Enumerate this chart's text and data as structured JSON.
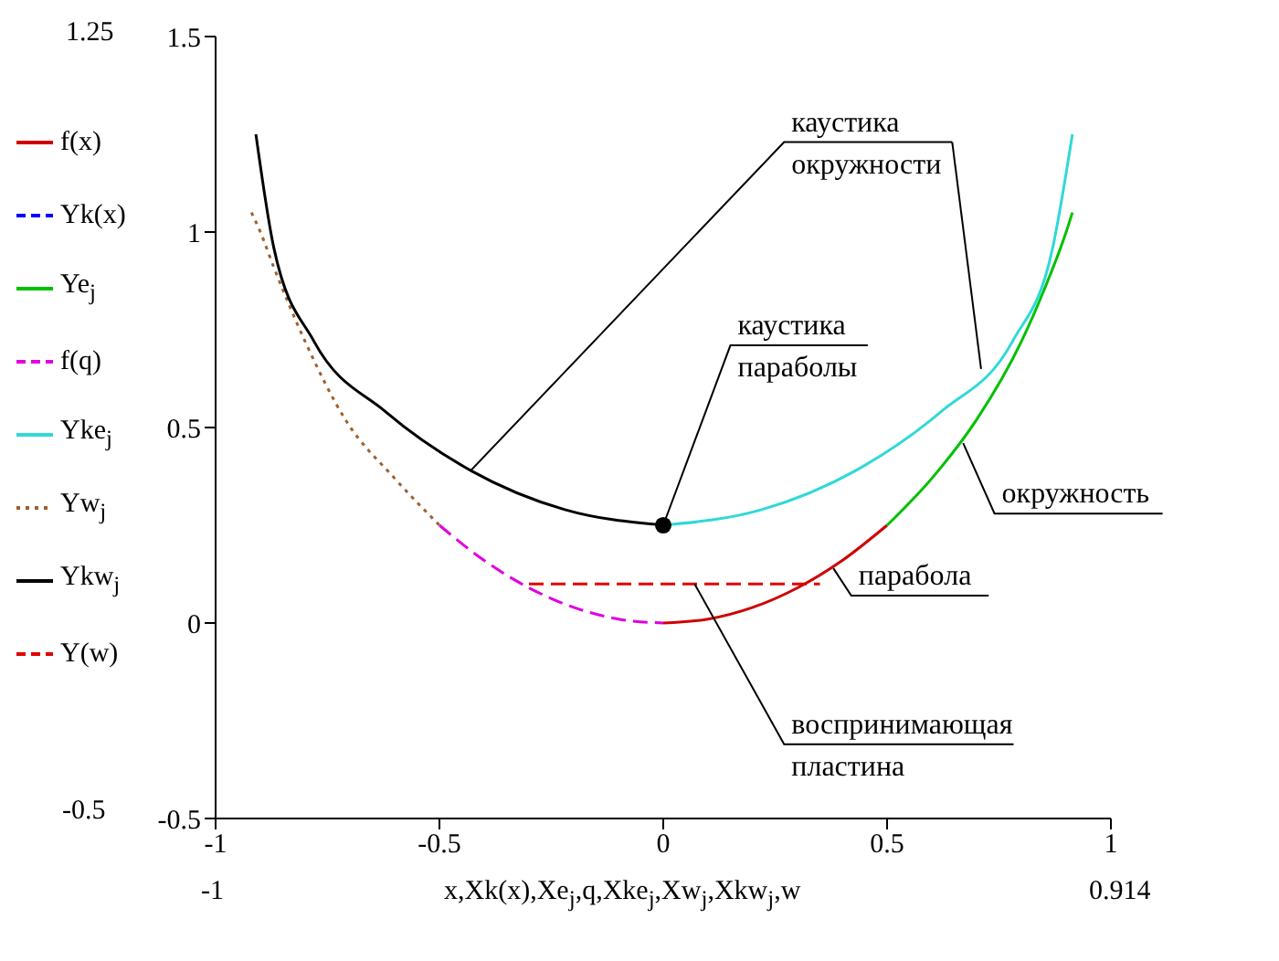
{
  "chart_data": {
    "type": "line",
    "xlabel": "x,Xk(x),Xe$_{j}$,q,Xke$_{j}$,Xw$_{j}$,Xkw$_{j}$,w",
    "xlim": [
      -1,
      1
    ],
    "xticks": [
      -1,
      -0.5,
      0,
      0.5,
      1
    ],
    "ylim": [
      -0.5,
      1.5
    ],
    "yticks": [
      -0.5,
      0,
      0.5,
      1,
      1.5
    ],
    "grid": false,
    "legend": "left",
    "marker": "none",
    "series": [
      {
        "name": "f(x)",
        "color": "#d00000",
        "line_style": "solid",
        "x": [
          0,
          0.1,
          0.2,
          0.3,
          0.4,
          0.5
        ],
        "values": [
          0,
          0.01,
          0.04,
          0.09,
          0.16,
          0.25
        ]
      },
      {
        "name": "Yk(x)",
        "color": "#0000ff",
        "line_style": "dashed"
      },
      {
        "name": "Ye$_{j}$",
        "color": "#00c000",
        "line_style": "solid",
        "x": [
          0.5,
          0.6,
          0.7,
          0.8,
          0.85,
          0.9,
          0.914
        ],
        "values": [
          0.25,
          0.37,
          0.52,
          0.72,
          0.85,
          1.0,
          1.05
        ]
      },
      {
        "name": "f(q)",
        "color": "#e000e0",
        "line_style": "dashed",
        "x": [
          -0.5,
          -0.4,
          -0.3,
          -0.2,
          -0.1,
          0
        ],
        "values": [
          0.25,
          0.16,
          0.09,
          0.04,
          0.01,
          0
        ]
      },
      {
        "name": "Yke$_{j}$",
        "color": "#30d8d8",
        "line_style": "solid",
        "x": [
          0,
          0.22,
          0.43,
          0.62,
          0.78,
          0.87,
          0.914
        ],
        "values": [
          0.25,
          0.29,
          0.39,
          0.54,
          0.72,
          0.96,
          1.25
        ]
      },
      {
        "name": "Yw$_{j}$",
        "color": "#a0602d",
        "line_style": "dotted",
        "x": [
          -0.92,
          -0.9,
          -0.87,
          -0.8,
          -0.71,
          -0.6,
          -0.5
        ],
        "values": [
          1.05,
          1.0,
          0.91,
          0.72,
          0.52,
          0.37,
          0.25
        ]
      },
      {
        "name": "Ykw$_{j}$",
        "color": "#000000",
        "line_style": "solid",
        "x": [
          -0.91,
          -0.87,
          -0.78,
          -0.62,
          -0.43,
          -0.22,
          0
        ],
        "values": [
          1.25,
          0.96,
          0.72,
          0.54,
          0.39,
          0.29,
          0.25
        ]
      },
      {
        "name": "Y(w)",
        "color": "#e00000",
        "line_style": "dashed",
        "x": [
          -0.3,
          0.35
        ],
        "values": [
          0.1,
          0.1
        ]
      },
      {
        "type": "scatter",
        "color": "#000000",
        "marker": "circle",
        "x": [
          0
        ],
        "values": [
          0.25
        ]
      }
    ],
    "annotations": [
      {
        "text": "каустика окружности",
        "x": -0.43,
        "y": 0.39
      },
      {
        "text": "каустика параболы",
        "x": 0,
        "y": 0.25
      },
      {
        "text": "окружность",
        "x": 0.67,
        "y": 0.46
      },
      {
        "text": "парабола",
        "x": 0.38,
        "y": 0.14
      },
      {
        "text": "воспринимающая пластина",
        "x": 0.07,
        "y": 0.1
      },
      "1.25",
      "-0.5",
      "-1",
      "0.914"
    ]
  }
}
